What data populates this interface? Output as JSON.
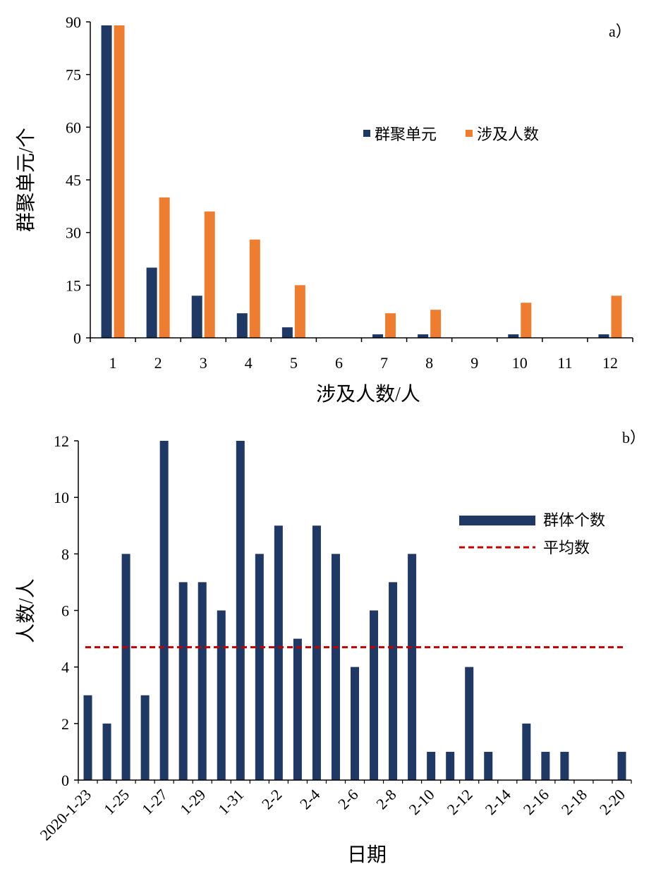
{
  "chart_data": [
    {
      "type": "bar",
      "panel_label": "a）",
      "xlabel": "涉及人数/人",
      "ylabel": "群聚单元/个",
      "ylim": [
        0,
        90
      ],
      "yticks": [
        "0",
        "15",
        "30",
        "45",
        "60",
        "75",
        "90"
      ],
      "categories": [
        "1",
        "2",
        "3",
        "4",
        "5",
        "6",
        "7",
        "8",
        "9",
        "10",
        "11",
        "12"
      ],
      "series": [
        {
          "name": "群聚单元",
          "color": "#203864",
          "values": [
            89,
            20,
            12,
            7,
            3,
            0,
            1,
            1,
            0,
            1,
            0,
            1
          ]
        },
        {
          "name": "涉及人数",
          "color": "#ED7D31",
          "values": [
            89,
            40,
            36,
            28,
            15,
            0,
            7,
            8,
            0,
            10,
            0,
            12
          ]
        }
      ],
      "legend_position": "top-right",
      "grid": false
    },
    {
      "type": "bar",
      "panel_label": "b）",
      "xlabel": "日期",
      "ylabel": "人数/人",
      "ylim": [
        0,
        12
      ],
      "yticks": [
        "0",
        "2",
        "4",
        "6",
        "8",
        "10",
        "12"
      ],
      "categories": [
        "2020-1-23",
        "1-24",
        "1-25",
        "1-26",
        "1-27",
        "1-28",
        "1-29",
        "1-30",
        "1-31",
        "2-1",
        "2-2",
        "2-3",
        "2-4",
        "2-5",
        "2-6",
        "2-7",
        "2-8",
        "2-9",
        "2-10",
        "2-11",
        "2-12",
        "2-13",
        "2-14",
        "2-15",
        "2-16",
        "2-17",
        "2-18",
        "2-19",
        "2-20"
      ],
      "tick_labels": [
        "2020-1-23",
        "1-25",
        "1-27",
        "1-29",
        "1-31",
        "2-2",
        "2-4",
        "2-6",
        "2-8",
        "2-10",
        "2-12",
        "2-14",
        "2-16",
        "2-18",
        "2-20"
      ],
      "series": [
        {
          "name": "群体个数",
          "color": "#203864",
          "values": [
            3,
            2,
            8,
            3,
            12,
            7,
            7,
            6,
            12,
            8,
            9,
            5,
            9,
            8,
            4,
            6,
            7,
            8,
            1,
            1,
            4,
            1,
            0,
            2,
            1,
            1,
            0,
            0,
            1
          ]
        },
        {
          "name": "平均数",
          "color": "#C00000",
          "type": "dashed-line",
          "value": 4.7
        }
      ],
      "legend_position": "top-right",
      "grid": false
    }
  ]
}
